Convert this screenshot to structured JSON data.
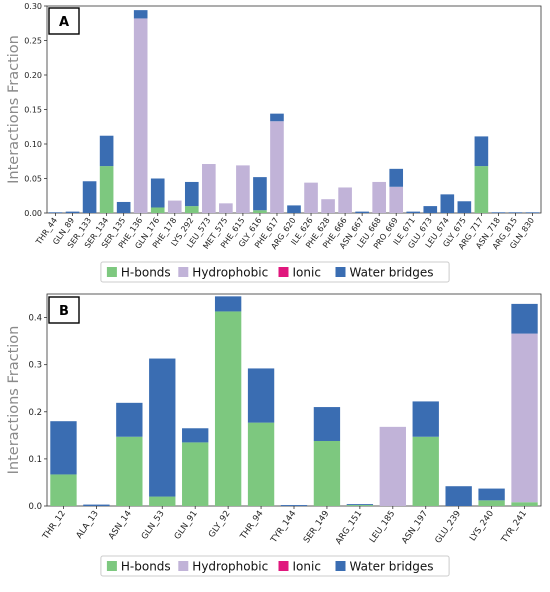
{
  "colors": {
    "hbonds": "#7dc87f",
    "hydrophobic": "#c1b3d8",
    "ionic": "#e0177d",
    "water": "#3a6db2",
    "axis": "#333333",
    "axis_title": "#8a8a8a",
    "tick": "#222222"
  },
  "chart_data": [
    {
      "type": "bar",
      "panel_label": "A",
      "ylabel": "Interactions Fraction",
      "ylim": [
        0,
        0.3
      ],
      "yticks": [
        "0.00",
        "0.05",
        "0.10",
        "0.15",
        "0.20",
        "0.25",
        "0.30"
      ],
      "ytick_values": [
        0,
        0.05,
        0.1,
        0.15,
        0.2,
        0.25,
        0.3
      ],
      "grid": false,
      "legend": {
        "placement": "bottom-center",
        "entries": [
          "H-bonds",
          "Hydrophobic",
          "Ionic",
          "Water bridges"
        ]
      },
      "categories": [
        "THR_44",
        "GLN_89",
        "SER_133",
        "SER_134",
        "SER_135",
        "PHE_136",
        "GLN_176",
        "PHE_178",
        "LYS_292",
        "LEU_573",
        "MET_575",
        "PHE_615",
        "GLY_616",
        "PHE_617",
        "ARG_620",
        "ILE_626",
        "PHE_628",
        "PHE_666",
        "ASN_667",
        "LEU_668",
        "PRO_669",
        "ILE_671",
        "GLU_673",
        "LEU_674",
        "GLY_675",
        "ARG_717",
        "ASN_718",
        "ARG_815",
        "GLN_830"
      ],
      "series": [
        {
          "name": "H-bonds",
          "values": [
            0,
            0,
            0,
            0.068,
            0,
            0,
            0.008,
            0,
            0.01,
            0,
            0,
            0,
            0.004,
            0,
            0,
            0,
            0,
            0,
            0,
            0,
            0,
            0,
            0,
            0,
            0,
            0.068,
            0,
            0,
            0
          ]
        },
        {
          "name": "Hydrophobic",
          "values": [
            0,
            0,
            0,
            0,
            0,
            0.282,
            0,
            0.018,
            0,
            0.071,
            0.014,
            0.069,
            0,
            0.133,
            0,
            0.044,
            0.02,
            0.037,
            0,
            0.045,
            0.038,
            0,
            0,
            0,
            0,
            0,
            0,
            0,
            0
          ]
        },
        {
          "name": "Ionic",
          "values": [
            0,
            0,
            0,
            0,
            0,
            0,
            0,
            0,
            0,
            0,
            0,
            0,
            0,
            0,
            0,
            0,
            0,
            0,
            0,
            0,
            0,
            0,
            0,
            0,
            0,
            0,
            0,
            0,
            0
          ]
        },
        {
          "name": "Water bridges",
          "values": [
            0.001,
            0.002,
            0.046,
            0.044,
            0.016,
            0.012,
            0.042,
            0,
            0.035,
            0,
            0,
            0,
            0.048,
            0.011,
            0.011,
            0,
            0,
            0,
            0.002,
            0,
            0.026,
            0.002,
            0.01,
            0.027,
            0.017,
            0.043,
            0.001,
            0.001,
            0.001
          ]
        }
      ]
    },
    {
      "type": "bar",
      "panel_label": "B",
      "ylabel": "Interactions Fraction",
      "ylim": [
        0,
        0.45
      ],
      "yticks": [
        "0.0",
        "0.1",
        "0.2",
        "0.3",
        "0.4"
      ],
      "ytick_values": [
        0,
        0.1,
        0.2,
        0.3,
        0.4
      ],
      "grid": false,
      "legend": {
        "placement": "bottom-center",
        "entries": [
          "H-bonds",
          "Hydrophobic",
          "Ionic",
          "Water bridges"
        ]
      },
      "categories": [
        "THR_12",
        "ALA_13",
        "ASN_14",
        "GLN_53",
        "GLN_91",
        "GLY_92",
        "THR_94",
        "TYR_144",
        "SER_149",
        "ARG_151",
        "LEU_185",
        "ASN_197",
        "GLU_239",
        "LYS_240",
        "TYR_241"
      ],
      "series": [
        {
          "name": "H-bonds",
          "values": [
            0.067,
            0,
            0.147,
            0.02,
            0.135,
            0.413,
            0.177,
            0,
            0.138,
            0.002,
            0,
            0.147,
            0,
            0.012,
            0.008
          ]
        },
        {
          "name": "Hydrophobic",
          "values": [
            0,
            0,
            0,
            0,
            0,
            0,
            0,
            0,
            0,
            0,
            0.168,
            0,
            0,
            0,
            0.358
          ]
        },
        {
          "name": "Ionic",
          "values": [
            0,
            0,
            0,
            0,
            0,
            0,
            0,
            0,
            0,
            0,
            0,
            0,
            0,
            0,
            0
          ]
        },
        {
          "name": "Water bridges",
          "values": [
            0.113,
            0.003,
            0.072,
            0.293,
            0.03,
            0.032,
            0.115,
            0.002,
            0.072,
            0.002,
            0,
            0.075,
            0.042,
            0.025,
            0.063
          ]
        }
      ]
    }
  ]
}
